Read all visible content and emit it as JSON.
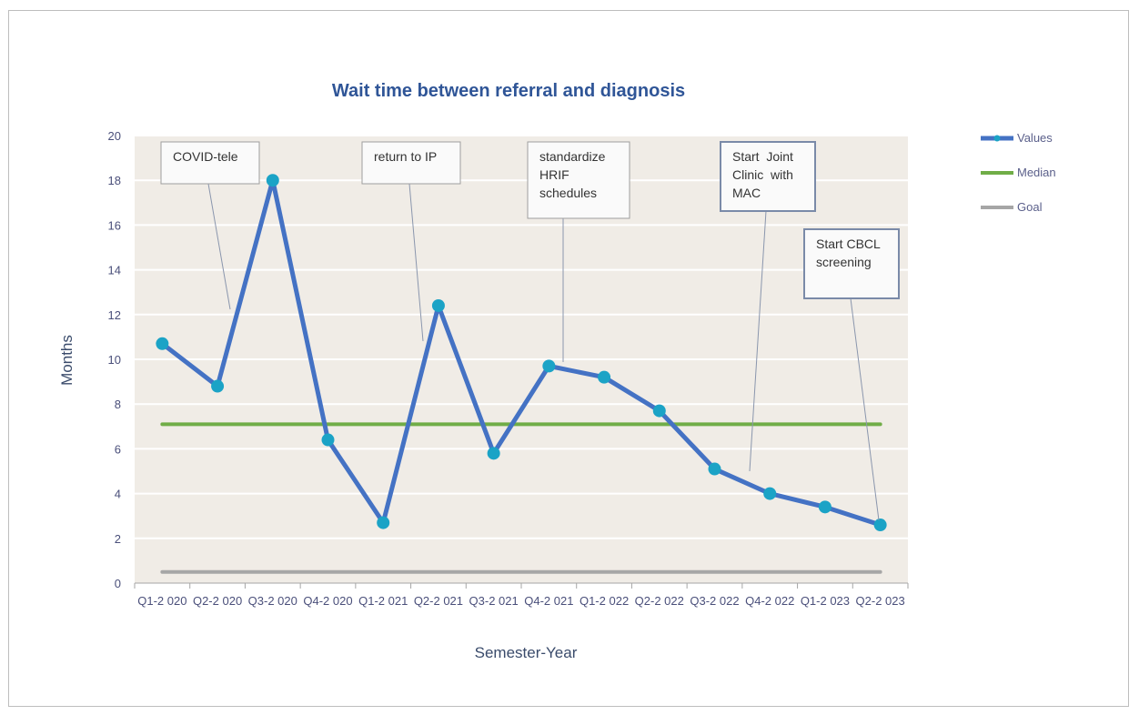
{
  "chart_data": {
    "type": "line",
    "title": "Wait time between referral and diagnosis",
    "xlabel": "Semester-Year",
    "ylabel": "Months",
    "ylim": [
      0,
      20
    ],
    "yticks": [
      0,
      2,
      4,
      6,
      8,
      10,
      12,
      14,
      16,
      18,
      20
    ],
    "grid": true,
    "legend_position": "right",
    "categories": [
      "Q1-2020",
      "Q2-2020",
      "Q3-2020",
      "Q4-2020",
      "Q1-2021",
      "Q2-2021",
      "Q3-2021",
      "Q4-2021",
      "Q1-2022",
      "Q2-2022",
      "Q3-2022",
      "Q4-2022",
      "Q1-2023",
      "Q2-2023"
    ],
    "category_labels": [
      "Q1-2 020",
      "Q2-2 020",
      "Q3-2 020",
      "Q4-2 020",
      "Q1-2 021",
      "Q2-2 021",
      "Q3-2 021",
      "Q4-2 021",
      "Q1-2 022",
      "Q2-2 022",
      "Q3-2 022",
      "Q4-2 022",
      "Q1-2 023",
      "Q2-2 023"
    ],
    "series": [
      {
        "name": "Values",
        "color": "#4472c4",
        "marker_color": "#1ba3c6",
        "values": [
          10.7,
          8.8,
          18.0,
          6.4,
          2.7,
          12.4,
          5.8,
          9.7,
          9.2,
          7.7,
          5.1,
          4.0,
          3.4,
          2.6
        ]
      },
      {
        "name": "Median",
        "color": "#70ad47",
        "values": [
          7.1,
          7.1,
          7.1,
          7.1,
          7.1,
          7.1,
          7.1,
          7.1,
          7.1,
          7.1,
          7.1,
          7.1,
          7.1,
          7.1
        ]
      },
      {
        "name": "Goal",
        "color": "#a6a6a6",
        "values": [
          0.5,
          0.5,
          0.5,
          0.5,
          0.5,
          0.5,
          0.5,
          0.5,
          0.5,
          0.5,
          0.5,
          0.5,
          0.5,
          0.5
        ]
      }
    ],
    "annotations": [
      {
        "lines": [
          "COVID-tele"
        ],
        "target_category": "Q3-2020"
      },
      {
        "lines": [
          "return to IP"
        ],
        "target_category": "Q2-2021"
      },
      {
        "lines": [
          "standardize",
          "HRIF",
          "schedules"
        ],
        "target_category": "Q4-2021"
      },
      {
        "lines": [
          "Start  Joint",
          "Clinic  with",
          "MAC"
        ],
        "target_category": "Q4-2022"
      },
      {
        "lines": [
          "Start CBCL",
          "screening"
        ],
        "target_category": "Q2-2023"
      }
    ],
    "colors": {
      "plot_background": "#f0ece6",
      "gridline": "#ffffff",
      "axis": "#a6a6a6"
    }
  }
}
